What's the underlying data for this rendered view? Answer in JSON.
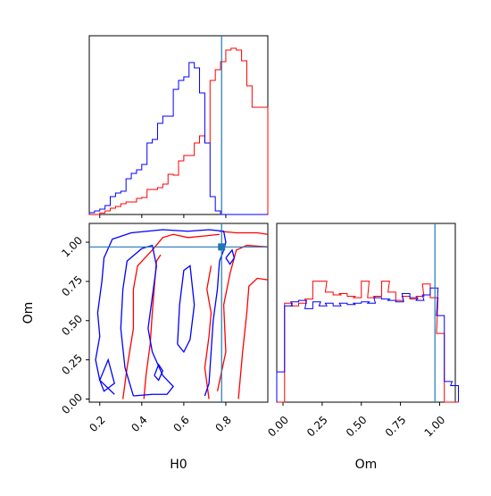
{
  "colors": {
    "series_a": "#ff0000",
    "series_b": "#0000ff",
    "truth": "#1f77b4",
    "frame": "#000000"
  },
  "chart_data": [
    {
      "type": "histogram",
      "panel": "H0 marginal",
      "x": [
        0.15,
        0.175,
        0.2,
        0.225,
        0.25,
        0.275,
        0.3,
        0.325,
        0.35,
        0.375,
        0.4,
        0.425,
        0.45,
        0.475,
        0.5,
        0.525,
        0.55,
        0.575,
        0.6,
        0.625,
        0.65,
        0.675,
        0.7,
        0.725,
        0.75,
        0.775,
        0.8,
        0.825,
        0.85,
        0.875,
        0.9,
        0.925,
        0.95,
        0.975
      ],
      "series": [
        {
          "values": [
            0,
            0,
            0.008,
            0.02,
            0.035,
            0.045,
            0.06,
            0.07,
            0.07,
            0.09,
            0.095,
            0.14,
            0.14,
            0.15,
            0.17,
            0.225,
            0.22,
            0.3,
            0.33,
            0.33,
            0.4,
            0.44,
            0.4,
            0.75,
            0.81,
            0.855,
            0.92,
            0.93,
            0.92,
            0.86,
            0.72,
            0.6,
            0.6,
            0.6
          ]
        },
        {
          "values": [
            0.01,
            0.02,
            0.03,
            0.05,
            0.1,
            0.12,
            0.13,
            0.2,
            0.23,
            0.25,
            0.28,
            0.4,
            0.42,
            0.51,
            0.55,
            0.55,
            0.7,
            0.75,
            0.77,
            0.85,
            0.82,
            0.68,
            0.4,
            0.1,
            0.02,
            0,
            0,
            0,
            0,
            0,
            0,
            0,
            0,
            0
          ]
        }
      ],
      "xlim": [
        0.15,
        1.0
      ],
      "ylim": [
        0,
        1.0
      ],
      "truth_x": 0.78
    },
    {
      "type": "contour",
      "panel": "H0 vs Om",
      "xlabel": "H0",
      "ylabel": "Om",
      "x_ticks": [
        "0.2",
        "0.4",
        "0.6",
        "0.8"
      ],
      "y_ticks": [
        "0.00",
        "0.25",
        "0.50",
        "0.75",
        "1.00"
      ],
      "xlim": [
        0.15,
        1.0
      ],
      "ylim": [
        -0.02,
        1.12
      ],
      "truth_x": 0.78,
      "truth_y": 0.97,
      "series": [
        {
          "contours": [
            [
              [
                0.77,
                1.07
              ],
              [
                0.85,
                1.06
              ],
              [
                0.95,
                1.06
              ],
              [
                1.0,
                1.05
              ]
            ],
            [
              [
                0.76,
                0.05
              ],
              [
                0.8,
                0.3
              ],
              [
                0.79,
                0.6
              ],
              [
                0.82,
                0.8
              ],
              [
                0.85,
                0.95
              ],
              [
                0.9,
                0.98
              ],
              [
                1.0,
                0.97
              ]
            ],
            [
              [
                0.86,
                0.0
              ],
              [
                0.88,
                0.3
              ],
              [
                0.9,
                0.55
              ],
              [
                0.91,
                0.72
              ],
              [
                0.95,
                0.77
              ],
              [
                1.0,
                0.76
              ]
            ],
            [
              [
                0.31,
                0.0
              ],
              [
                0.33,
                0.2
              ],
              [
                0.36,
                0.45
              ],
              [
                0.36,
                0.7
              ],
              [
                0.38,
                0.85
              ],
              [
                0.45,
                0.95
              ],
              [
                0.5,
                1.03
              ],
              [
                0.55,
                1.05
              ],
              [
                0.62,
                1.03
              ],
              [
                0.7,
                1.04
              ],
              [
                0.77,
                1.05
              ]
            ],
            [
              [
                0.41,
                0.0
              ],
              [
                0.42,
                0.15
              ],
              [
                0.44,
                0.35
              ],
              [
                0.45,
                0.55
              ],
              [
                0.46,
                0.72
              ],
              [
                0.47,
                0.88
              ],
              [
                0.49,
                0.92
              ]
            ],
            [
              [
                0.72,
                0.0
              ],
              [
                0.7,
                0.2
              ],
              [
                0.72,
                0.4
              ],
              [
                0.73,
                0.55
              ],
              [
                0.71,
                0.7
              ],
              [
                0.73,
                0.85
              ]
            ]
          ]
        },
        {
          "contours": [
            [
              [
                0.27,
                0.03
              ],
              [
                0.2,
                0.12
              ],
              [
                0.18,
                0.25
              ],
              [
                0.2,
                0.4
              ],
              [
                0.19,
                0.55
              ],
              [
                0.21,
                0.75
              ],
              [
                0.22,
                0.9
              ],
              [
                0.26,
                1.02
              ],
              [
                0.35,
                1.06
              ],
              [
                0.5,
                1.08
              ],
              [
                0.62,
                1.07
              ],
              [
                0.72,
                1.08
              ],
              [
                0.79,
                1.07
              ],
              [
                0.8,
                1.0
              ],
              [
                0.79,
                0.95
              ],
              [
                0.77,
                0.88
              ],
              [
                0.76,
                0.7
              ],
              [
                0.74,
                0.5
              ],
              [
                0.73,
                0.3
              ],
              [
                0.72,
                0.1
              ],
              [
                0.7,
                0.02
              ]
            ],
            [
              [
                0.36,
                0.02
              ],
              [
                0.32,
                0.2
              ],
              [
                0.3,
                0.45
              ],
              [
                0.31,
                0.7
              ],
              [
                0.33,
                0.88
              ],
              [
                0.4,
                0.96
              ],
              [
                0.45,
                0.98
              ],
              [
                0.47,
                0.85
              ],
              [
                0.45,
                0.65
              ],
              [
                0.43,
                0.45
              ],
              [
                0.45,
                0.3
              ],
              [
                0.5,
                0.15
              ],
              [
                0.55,
                0.08
              ],
              [
                0.52,
                0.03
              ],
              [
                0.45,
                0.03
              ],
              [
                0.36,
                0.02
              ]
            ],
            [
              [
                0.2,
                0.12
              ],
              [
                0.24,
                0.25
              ],
              [
                0.27,
                0.1
              ],
              [
                0.22,
                0.05
              ],
              [
                0.2,
                0.12
              ]
            ],
            [
              [
                0.57,
                0.35
              ],
              [
                0.58,
                0.6
              ],
              [
                0.6,
                0.82
              ],
              [
                0.63,
                0.85
              ],
              [
                0.65,
                0.6
              ],
              [
                0.63,
                0.38
              ],
              [
                0.6,
                0.3
              ],
              [
                0.57,
                0.35
              ]
            ],
            [
              [
                0.46,
                0.15
              ],
              [
                0.48,
                0.22
              ],
              [
                0.5,
                0.18
              ],
              [
                0.48,
                0.12
              ],
              [
                0.46,
                0.15
              ]
            ],
            [
              [
                0.8,
                0.9
              ],
              [
                0.83,
                0.95
              ],
              [
                0.84,
                0.9
              ],
              [
                0.82,
                0.86
              ],
              [
                0.8,
                0.9
              ]
            ]
          ]
        }
      ]
    },
    {
      "type": "histogram",
      "panel": "Om marginal",
      "xlabel": "Om",
      "x_ticks": [
        "0.00",
        "0.25",
        "0.50",
        "0.75",
        "1.00"
      ],
      "x": [
        -0.04,
        0.01,
        0.05,
        0.1,
        0.14,
        0.19,
        0.23,
        0.27,
        0.32,
        0.36,
        0.41,
        0.45,
        0.5,
        0.54,
        0.58,
        0.63,
        0.67,
        0.72,
        0.76,
        0.81,
        0.85,
        0.89,
        0.94,
        0.98,
        1.03,
        1.07
      ],
      "series": [
        {
          "values": [
            0,
            0.72,
            0.7,
            0.72,
            0.75,
            0.88,
            0.88,
            0.8,
            0.78,
            0.79,
            0.77,
            0.76,
            0.88,
            0.76,
            0.77,
            0.88,
            0.8,
            0.74,
            0.77,
            0.75,
            0.77,
            0.86,
            0.76,
            0.5,
            0,
            0
          ]
        },
        {
          "values": [
            0.22,
            0.7,
            0.73,
            0.74,
            0.68,
            0.73,
            0.7,
            0.72,
            0.7,
            0.72,
            0.71,
            0.72,
            0.73,
            0.72,
            0.76,
            0.75,
            0.74,
            0.73,
            0.79,
            0.76,
            0.74,
            0.78,
            0.83,
            0.63,
            0.15,
            0.12
          ]
        }
      ],
      "xlim": [
        -0.04,
        1.1
      ],
      "ylim": [
        0,
        1.3
      ],
      "truth_x": 0.97
    }
  ]
}
